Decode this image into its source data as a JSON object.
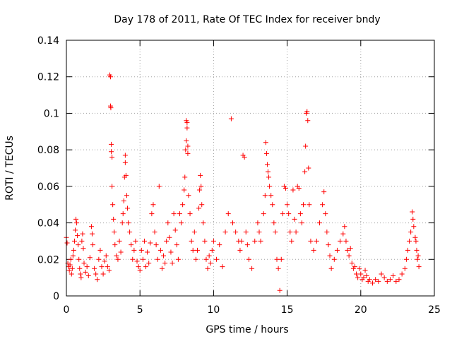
{
  "chart_data": {
    "type": "scatter",
    "title": "Day 178 of 2011, Rate Of TEC Index for receiver bndy",
    "xlabel": "GPS time / hours",
    "ylabel": "ROTI / TECUs",
    "xlim": [
      0,
      25
    ],
    "ylim": [
      0,
      0.14
    ],
    "x_ticks": [
      0,
      5,
      10,
      15,
      20,
      25
    ],
    "x_tick_labels": [
      "0",
      "5",
      "10",
      "15",
      "20",
      "25"
    ],
    "y_ticks": [
      0,
      0.02,
      0.04,
      0.06,
      0.08,
      0.1,
      0.12,
      0.14
    ],
    "y_tick_labels": [
      "0",
      "0.02",
      "0.04",
      "0.06",
      "0.08",
      "0.1",
      "0.12",
      "0.14"
    ],
    "grid": true,
    "marker": "+",
    "color": "#ff0000",
    "series": [
      {
        "name": "ROTI",
        "points": [
          [
            0.0,
            0.032
          ],
          [
            0.05,
            0.029
          ],
          [
            0.1,
            0.018
          ],
          [
            0.15,
            0.016
          ],
          [
            0.2,
            0.014
          ],
          [
            0.25,
            0.017
          ],
          [
            0.3,
            0.02
          ],
          [
            0.35,
            0.012
          ],
          [
            0.4,
            0.015
          ],
          [
            0.45,
            0.022
          ],
          [
            0.5,
            0.025
          ],
          [
            0.55,
            0.03
          ],
          [
            0.6,
            0.036
          ],
          [
            0.65,
            0.042
          ],
          [
            0.7,
            0.04
          ],
          [
            0.75,
            0.033
          ],
          [
            0.8,
            0.028
          ],
          [
            0.85,
            0.02
          ],
          [
            0.9,
            0.015
          ],
          [
            0.95,
            0.012
          ],
          [
            1.0,
            0.01
          ],
          [
            1.05,
            0.03
          ],
          [
            1.1,
            0.034
          ],
          [
            1.15,
            0.026
          ],
          [
            1.2,
            0.018
          ],
          [
            1.3,
            0.013
          ],
          [
            1.4,
            0.016
          ],
          [
            1.5,
            0.011
          ],
          [
            1.6,
            0.021
          ],
          [
            1.7,
            0.038
          ],
          [
            1.75,
            0.034
          ],
          [
            1.8,
            0.028
          ],
          [
            1.9,
            0.015
          ],
          [
            2.0,
            0.012
          ],
          [
            2.1,
            0.009
          ],
          [
            2.2,
            0.02
          ],
          [
            2.3,
            0.025
          ],
          [
            2.4,
            0.016
          ],
          [
            2.5,
            0.012
          ],
          [
            2.6,
            0.019
          ],
          [
            2.7,
            0.022
          ],
          [
            2.8,
            0.016
          ],
          [
            2.9,
            0.014
          ],
          [
            2.95,
            0.121
          ],
          [
            3.0,
            0.12
          ],
          [
            3.0,
            0.104
          ],
          [
            3.02,
            0.103
          ],
          [
            3.05,
            0.083
          ],
          [
            3.05,
            0.079
          ],
          [
            3.1,
            0.076
          ],
          [
            3.1,
            0.06
          ],
          [
            3.15,
            0.05
          ],
          [
            3.2,
            0.042
          ],
          [
            3.25,
            0.035
          ],
          [
            3.3,
            0.028
          ],
          [
            3.4,
            0.022
          ],
          [
            3.5,
            0.02
          ],
          [
            3.6,
            0.03
          ],
          [
            3.7,
            0.024
          ],
          [
            3.8,
            0.04
          ],
          [
            3.85,
            0.045
          ],
          [
            3.9,
            0.052
          ],
          [
            3.95,
            0.065
          ],
          [
            4.0,
            0.077
          ],
          [
            4.0,
            0.073
          ],
          [
            4.05,
            0.066
          ],
          [
            4.1,
            0.055
          ],
          [
            4.15,
            0.048
          ],
          [
            4.2,
            0.04
          ],
          [
            4.3,
            0.035
          ],
          [
            4.4,
            0.028
          ],
          [
            4.5,
            0.02
          ],
          [
            4.6,
            0.025
          ],
          [
            4.7,
            0.03
          ],
          [
            4.8,
            0.019
          ],
          [
            4.9,
            0.016
          ],
          [
            5.0,
            0.014
          ],
          [
            5.1,
            0.025
          ],
          [
            5.2,
            0.02
          ],
          [
            5.3,
            0.03
          ],
          [
            5.4,
            0.016
          ],
          [
            5.5,
            0.024
          ],
          [
            5.6,
            0.018
          ],
          [
            5.7,
            0.029
          ],
          [
            5.8,
            0.045
          ],
          [
            5.9,
            0.05
          ],
          [
            6.0,
            0.035
          ],
          [
            6.1,
            0.028
          ],
          [
            6.2,
            0.02
          ],
          [
            6.3,
            0.06
          ],
          [
            6.4,
            0.025
          ],
          [
            6.5,
            0.015
          ],
          [
            6.6,
            0.022
          ],
          [
            6.7,
            0.018
          ],
          [
            6.8,
            0.03
          ],
          [
            6.9,
            0.04
          ],
          [
            7.0,
            0.032
          ],
          [
            7.1,
            0.024
          ],
          [
            7.2,
            0.018
          ],
          [
            7.3,
            0.045
          ],
          [
            7.4,
            0.036
          ],
          [
            7.5,
            0.028
          ],
          [
            7.6,
            0.02
          ],
          [
            7.7,
            0.045
          ],
          [
            7.8,
            0.04
          ],
          [
            7.9,
            0.05
          ],
          [
            8.0,
            0.058
          ],
          [
            8.05,
            0.065
          ],
          [
            8.1,
            0.08
          ],
          [
            8.15,
            0.085
          ],
          [
            8.15,
            0.096
          ],
          [
            8.2,
            0.095
          ],
          [
            8.2,
            0.092
          ],
          [
            8.25,
            0.082
          ],
          [
            8.25,
            0.078
          ],
          [
            8.3,
            0.055
          ],
          [
            8.4,
            0.045
          ],
          [
            8.5,
            0.03
          ],
          [
            8.6,
            0.025
          ],
          [
            8.7,
            0.035
          ],
          [
            8.8,
            0.02
          ],
          [
            8.9,
            0.025
          ],
          [
            9.0,
            0.048
          ],
          [
            9.05,
            0.058
          ],
          [
            9.1,
            0.066
          ],
          [
            9.15,
            0.06
          ],
          [
            9.2,
            0.05
          ],
          [
            9.3,
            0.04
          ],
          [
            9.4,
            0.03
          ],
          [
            9.5,
            0.02
          ],
          [
            9.6,
            0.015
          ],
          [
            9.7,
            0.022
          ],
          [
            9.8,
            0.018
          ],
          [
            9.9,
            0.025
          ],
          [
            10.0,
            0.03
          ],
          [
            10.2,
            0.02
          ],
          [
            10.4,
            0.028
          ],
          [
            10.6,
            0.016
          ],
          [
            10.8,
            0.035
          ],
          [
            11.0,
            0.045
          ],
          [
            11.2,
            0.097
          ],
          [
            11.3,
            0.04
          ],
          [
            11.5,
            0.035
          ],
          [
            11.7,
            0.03
          ],
          [
            11.8,
            0.025
          ],
          [
            11.9,
            0.03
          ],
          [
            12.0,
            0.077
          ],
          [
            12.1,
            0.076
          ],
          [
            12.2,
            0.035
          ],
          [
            12.3,
            0.028
          ],
          [
            12.4,
            0.02
          ],
          [
            12.6,
            0.015
          ],
          [
            12.8,
            0.03
          ],
          [
            13.0,
            0.04
          ],
          [
            13.1,
            0.035
          ],
          [
            13.2,
            0.03
          ],
          [
            13.4,
            0.045
          ],
          [
            13.5,
            0.055
          ],
          [
            13.55,
            0.084
          ],
          [
            13.6,
            0.078
          ],
          [
            13.65,
            0.072
          ],
          [
            13.7,
            0.068
          ],
          [
            13.75,
            0.065
          ],
          [
            13.8,
            0.06
          ],
          [
            13.9,
            0.055
          ],
          [
            14.0,
            0.05
          ],
          [
            14.1,
            0.04
          ],
          [
            14.2,
            0.035
          ],
          [
            14.3,
            0.02
          ],
          [
            14.4,
            0.015
          ],
          [
            14.5,
            0.003
          ],
          [
            14.6,
            0.02
          ],
          [
            14.7,
            0.045
          ],
          [
            14.8,
            0.06
          ],
          [
            14.9,
            0.059
          ],
          [
            15.0,
            0.05
          ],
          [
            15.1,
            0.045
          ],
          [
            15.2,
            0.035
          ],
          [
            15.3,
            0.03
          ],
          [
            15.4,
            0.058
          ],
          [
            15.5,
            0.042
          ],
          [
            15.6,
            0.035
          ],
          [
            15.7,
            0.06
          ],
          [
            15.8,
            0.059
          ],
          [
            15.9,
            0.045
          ],
          [
            16.0,
            0.04
          ],
          [
            16.1,
            0.05
          ],
          [
            16.2,
            0.068
          ],
          [
            16.25,
            0.082
          ],
          [
            16.3,
            0.1
          ],
          [
            16.35,
            0.101
          ],
          [
            16.4,
            0.096
          ],
          [
            16.45,
            0.07
          ],
          [
            16.5,
            0.05
          ],
          [
            16.6,
            0.03
          ],
          [
            16.8,
            0.025
          ],
          [
            17.0,
            0.03
          ],
          [
            17.2,
            0.04
          ],
          [
            17.4,
            0.05
          ],
          [
            17.5,
            0.057
          ],
          [
            17.6,
            0.045
          ],
          [
            17.7,
            0.035
          ],
          [
            17.8,
            0.028
          ],
          [
            17.9,
            0.022
          ],
          [
            18.0,
            0.015
          ],
          [
            18.2,
            0.02
          ],
          [
            18.4,
            0.025
          ],
          [
            18.6,
            0.03
          ],
          [
            18.8,
            0.034
          ],
          [
            18.9,
            0.038
          ],
          [
            19.0,
            0.03
          ],
          [
            19.1,
            0.025
          ],
          [
            19.2,
            0.022
          ],
          [
            19.3,
            0.026
          ],
          [
            19.4,
            0.018
          ],
          [
            19.5,
            0.015
          ],
          [
            19.6,
            0.016
          ],
          [
            19.7,
            0.012
          ],
          [
            19.8,
            0.01
          ],
          [
            19.9,
            0.015
          ],
          [
            20.0,
            0.012
          ],
          [
            20.1,
            0.009
          ],
          [
            20.2,
            0.01
          ],
          [
            20.3,
            0.014
          ],
          [
            20.4,
            0.011
          ],
          [
            20.5,
            0.008
          ],
          [
            20.6,
            0.009
          ],
          [
            20.8,
            0.007
          ],
          [
            21.0,
            0.009
          ],
          [
            21.2,
            0.008
          ],
          [
            21.4,
            0.012
          ],
          [
            21.6,
            0.01
          ],
          [
            21.8,
            0.008
          ],
          [
            22.0,
            0.009
          ],
          [
            22.2,
            0.011
          ],
          [
            22.4,
            0.008
          ],
          [
            22.6,
            0.009
          ],
          [
            22.8,
            0.012
          ],
          [
            23.0,
            0.015
          ],
          [
            23.1,
            0.02
          ],
          [
            23.2,
            0.025
          ],
          [
            23.3,
            0.03
          ],
          [
            23.4,
            0.035
          ],
          [
            23.5,
            0.046
          ],
          [
            23.55,
            0.042
          ],
          [
            23.6,
            0.038
          ],
          [
            23.7,
            0.032
          ],
          [
            23.75,
            0.03
          ],
          [
            23.8,
            0.025
          ],
          [
            23.85,
            0.02
          ],
          [
            23.9,
            0.022
          ],
          [
            23.95,
            0.016
          ]
        ]
      }
    ]
  }
}
